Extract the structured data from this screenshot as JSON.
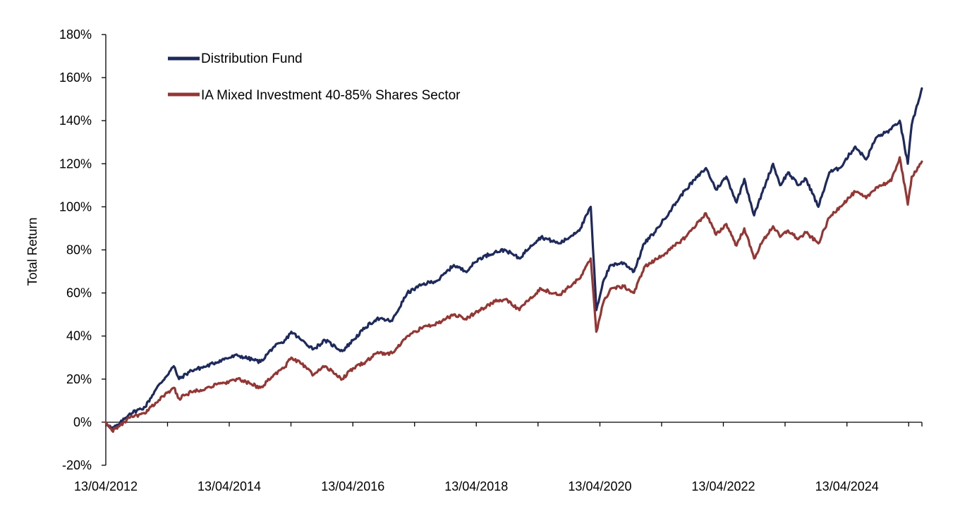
{
  "chart_data": {
    "type": "line",
    "title": "",
    "xlabel": "",
    "ylabel": "Total Return",
    "ylim": [
      -20,
      180
    ],
    "yticks": [
      "-20%",
      "0%",
      "20%",
      "40%",
      "60%",
      "80%",
      "100%",
      "120%",
      "140%",
      "160%",
      "180%"
    ],
    "xticks": [
      "13/04/2012",
      "13/04/2014",
      "13/04/2016",
      "13/04/2018",
      "13/04/2020",
      "13/04/2022",
      "13/04/2024"
    ],
    "xlim": [
      "2012-04-13",
      "2025-06-30"
    ],
    "grid": false,
    "legend": "top-left",
    "series": [
      {
        "name": "Distribution Fund",
        "color": "#1f2a5c",
        "points": [
          [
            "2012-04-13",
            0
          ],
          [
            "2012-05-20",
            -3
          ],
          [
            "2012-07-01",
            -1
          ],
          [
            "2012-09-01",
            4
          ],
          [
            "2012-12-01",
            7
          ],
          [
            "2013-02-01",
            15
          ],
          [
            "2013-05-20",
            26
          ],
          [
            "2013-06-20",
            20
          ],
          [
            "2013-09-01",
            24
          ],
          [
            "2013-12-01",
            26
          ],
          [
            "2014-03-01",
            29
          ],
          [
            "2014-06-01",
            31
          ],
          [
            "2014-10-15",
            28
          ],
          [
            "2015-01-01",
            35
          ],
          [
            "2015-03-01",
            37
          ],
          [
            "2015-04-15",
            42
          ],
          [
            "2015-06-15",
            38
          ],
          [
            "2015-08-25",
            34
          ],
          [
            "2015-11-01",
            38
          ],
          [
            "2016-02-11",
            33
          ],
          [
            "2016-04-13",
            38
          ],
          [
            "2016-06-27",
            44
          ],
          [
            "2016-09-01",
            48
          ],
          [
            "2016-12-01",
            47
          ],
          [
            "2017-03-01",
            60
          ],
          [
            "2017-06-01",
            64
          ],
          [
            "2017-09-01",
            66
          ],
          [
            "2017-12-01",
            73
          ],
          [
            "2018-02-08",
            70
          ],
          [
            "2018-05-01",
            76
          ],
          [
            "2018-08-01",
            79
          ],
          [
            "2018-10-01",
            80
          ],
          [
            "2018-12-24",
            76
          ],
          [
            "2019-03-01",
            82
          ],
          [
            "2019-05-01",
            86
          ],
          [
            "2019-08-15",
            83
          ],
          [
            "2019-10-01",
            85
          ],
          [
            "2019-12-20",
            90
          ],
          [
            "2020-02-19",
            100
          ],
          [
            "2020-03-23",
            52
          ],
          [
            "2020-05-01",
            65
          ],
          [
            "2020-06-15",
            73
          ],
          [
            "2020-09-01",
            74
          ],
          [
            "2020-11-01",
            70
          ],
          [
            "2020-12-31",
            83
          ],
          [
            "2021-03-01",
            88
          ],
          [
            "2021-06-01",
            98
          ],
          [
            "2021-09-01",
            108
          ],
          [
            "2021-12-31",
            118
          ],
          [
            "2022-03-01",
            108
          ],
          [
            "2022-05-01",
            114
          ],
          [
            "2022-06-30",
            102
          ],
          [
            "2022-08-15",
            113
          ],
          [
            "2022-10-12",
            96
          ],
          [
            "2022-12-01",
            107
          ],
          [
            "2023-02-01",
            120
          ],
          [
            "2023-03-15",
            110
          ],
          [
            "2023-05-01",
            116
          ],
          [
            "2023-06-30",
            110
          ],
          [
            "2023-08-15",
            113
          ],
          [
            "2023-10-27",
            100
          ],
          [
            "2023-12-31",
            116
          ],
          [
            "2024-03-01",
            118
          ],
          [
            "2024-06-01",
            128
          ],
          [
            "2024-08-05",
            122
          ],
          [
            "2024-10-01",
            132
          ],
          [
            "2024-12-31",
            136
          ],
          [
            "2025-02-19",
            140
          ],
          [
            "2025-04-08",
            120
          ],
          [
            "2025-05-01",
            138
          ],
          [
            "2025-06-30",
            155
          ]
        ]
      },
      {
        "name": "IA Mixed Investment 40-85% Shares Sector",
        "color": "#943634",
        "points": [
          [
            "2012-04-13",
            0
          ],
          [
            "2012-05-20",
            -4
          ],
          [
            "2012-07-01",
            -2
          ],
          [
            "2012-09-01",
            2
          ],
          [
            "2012-12-01",
            4
          ],
          [
            "2013-02-01",
            9
          ],
          [
            "2013-05-20",
            16
          ],
          [
            "2013-06-20",
            11
          ],
          [
            "2013-09-01",
            14
          ],
          [
            "2013-12-01",
            16
          ],
          [
            "2014-03-01",
            18
          ],
          [
            "2014-06-01",
            20
          ],
          [
            "2014-10-15",
            16
          ],
          [
            "2015-01-01",
            22
          ],
          [
            "2015-03-01",
            25
          ],
          [
            "2015-04-15",
            30
          ],
          [
            "2015-06-15",
            27
          ],
          [
            "2015-08-25",
            22
          ],
          [
            "2015-11-01",
            26
          ],
          [
            "2016-02-11",
            20
          ],
          [
            "2016-04-13",
            25
          ],
          [
            "2016-06-27",
            28
          ],
          [
            "2016-09-01",
            32
          ],
          [
            "2016-12-01",
            32
          ],
          [
            "2017-03-01",
            40
          ],
          [
            "2017-06-01",
            44
          ],
          [
            "2017-09-01",
            46
          ],
          [
            "2017-12-01",
            50
          ],
          [
            "2018-02-08",
            48
          ],
          [
            "2018-05-01",
            52
          ],
          [
            "2018-08-01",
            56
          ],
          [
            "2018-10-01",
            57
          ],
          [
            "2018-12-24",
            52
          ],
          [
            "2019-03-01",
            58
          ],
          [
            "2019-05-01",
            62
          ],
          [
            "2019-08-15",
            59
          ],
          [
            "2019-10-01",
            62
          ],
          [
            "2019-12-20",
            67
          ],
          [
            "2020-02-19",
            76
          ],
          [
            "2020-03-23",
            42
          ],
          [
            "2020-05-01",
            55
          ],
          [
            "2020-06-15",
            62
          ],
          [
            "2020-09-01",
            63
          ],
          [
            "2020-11-01",
            60
          ],
          [
            "2020-12-31",
            72
          ],
          [
            "2021-03-01",
            75
          ],
          [
            "2021-06-01",
            80
          ],
          [
            "2021-09-01",
            86
          ],
          [
            "2021-12-31",
            97
          ],
          [
            "2022-03-01",
            87
          ],
          [
            "2022-05-01",
            92
          ],
          [
            "2022-06-30",
            82
          ],
          [
            "2022-08-15",
            90
          ],
          [
            "2022-10-12",
            76
          ],
          [
            "2022-12-01",
            84
          ],
          [
            "2023-02-01",
            91
          ],
          [
            "2023-03-15",
            86
          ],
          [
            "2023-05-01",
            89
          ],
          [
            "2023-06-30",
            85
          ],
          [
            "2023-08-15",
            88
          ],
          [
            "2023-10-27",
            83
          ],
          [
            "2023-12-31",
            95
          ],
          [
            "2024-03-01",
            100
          ],
          [
            "2024-06-01",
            107
          ],
          [
            "2024-08-05",
            104
          ],
          [
            "2024-10-01",
            109
          ],
          [
            "2024-12-31",
            112
          ],
          [
            "2025-02-19",
            123
          ],
          [
            "2025-04-08",
            101
          ],
          [
            "2025-05-01",
            114
          ],
          [
            "2025-06-30",
            121
          ]
        ]
      }
    ]
  }
}
